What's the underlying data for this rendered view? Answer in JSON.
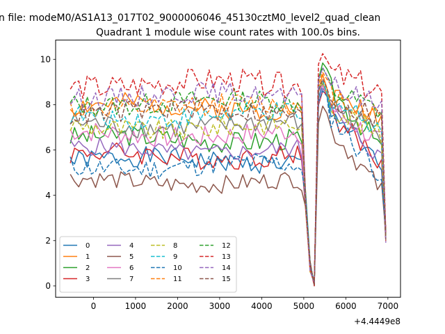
{
  "chart_data": {
    "type": "line",
    "suptitle": "n file: modeM0/AS1A13_017T02_9000006046_45130cztM0_level2_quad_clean",
    "title": "Quadrant 1 module wise count rates with 100.0s bins.",
    "xlabel": "",
    "ylabel": "",
    "x_offset_label": "+4.4449e8",
    "xlim": [
      -900,
      7300
    ],
    "ylim": [
      -0.5,
      10.85
    ],
    "xticks": [
      0,
      1000,
      2000,
      3000,
      4000,
      5000,
      6000,
      7000
    ],
    "xtick_labels": [
      "0",
      "1000",
      "2000",
      "3000",
      "4000",
      "5000",
      "6000",
      "7000"
    ],
    "yticks": [
      0,
      2,
      4,
      6,
      8,
      10
    ],
    "ytick_labels": [
      "0",
      "2",
      "4",
      "6",
      "8",
      "10"
    ],
    "x_start": -550,
    "x_step": 100,
    "grid": false,
    "legend_position": "lower-left",
    "legend_columns": 4,
    "series": [
      {
        "name": "0",
        "color": "#1f77b4",
        "dash": "solid",
        "level": 5.55,
        "amp": 0.28,
        "peak": 8.9,
        "seed": 1
      },
      {
        "name": "1",
        "color": "#ff7f0e",
        "dash": "solid",
        "level": 7.9,
        "amp": 0.3,
        "peak": 9.3,
        "seed": 2
      },
      {
        "name": "2",
        "color": "#2ca02c",
        "dash": "solid",
        "level": 6.5,
        "amp": 0.3,
        "peak": 9.8,
        "seed": 3
      },
      {
        "name": "3",
        "color": "#d62728",
        "dash": "solid",
        "level": 5.75,
        "amp": 0.3,
        "peak": 8.7,
        "seed": 4
      },
      {
        "name": "4",
        "color": "#9467bd",
        "dash": "solid",
        "level": 6.0,
        "amp": 0.25,
        "peak": 8.8,
        "seed": 5
      },
      {
        "name": "5",
        "color": "#8c564b",
        "dash": "solid",
        "level": 4.6,
        "amp": 0.25,
        "peak": 8.0,
        "seed": 6
      },
      {
        "name": "6",
        "color": "#e377c2",
        "dash": "solid",
        "level": 6.7,
        "amp": 0.3,
        "peak": 8.9,
        "seed": 7
      },
      {
        "name": "7",
        "color": "#7f7f7f",
        "dash": "solid",
        "level": 7.1,
        "amp": 0.3,
        "peak": 9.0,
        "seed": 8
      },
      {
        "name": "8",
        "color": "#bcbd22",
        "dash": "dashed",
        "level": 7.0,
        "amp": 0.3,
        "peak": 9.0,
        "seed": 9
      },
      {
        "name": "9",
        "color": "#17becf",
        "dash": "dashed",
        "level": 7.5,
        "amp": 0.3,
        "peak": 9.1,
        "seed": 10
      },
      {
        "name": "10",
        "color": "#1f77b4",
        "dash": "dashed",
        "level": 5.3,
        "amp": 0.3,
        "peak": 8.6,
        "seed": 11
      },
      {
        "name": "11",
        "color": "#ff7f0e",
        "dash": "dashed",
        "level": 7.9,
        "amp": 0.3,
        "peak": 9.4,
        "seed": 12
      },
      {
        "name": "12",
        "color": "#2ca02c",
        "dash": "dashed",
        "level": 8.1,
        "amp": 0.3,
        "peak": 9.6,
        "seed": 13
      },
      {
        "name": "13",
        "color": "#d62728",
        "dash": "dashed",
        "level": 8.9,
        "amp": 0.35,
        "peak": 10.35,
        "seed": 14
      },
      {
        "name": "14",
        "color": "#9467bd",
        "dash": "dashed",
        "level": 8.4,
        "amp": 0.3,
        "peak": 9.7,
        "seed": 15
      },
      {
        "name": "15",
        "color": "#8c564b",
        "dash": "dashed",
        "level": 7.7,
        "amp": 0.3,
        "peak": 9.2,
        "seed": 16
      }
    ]
  }
}
